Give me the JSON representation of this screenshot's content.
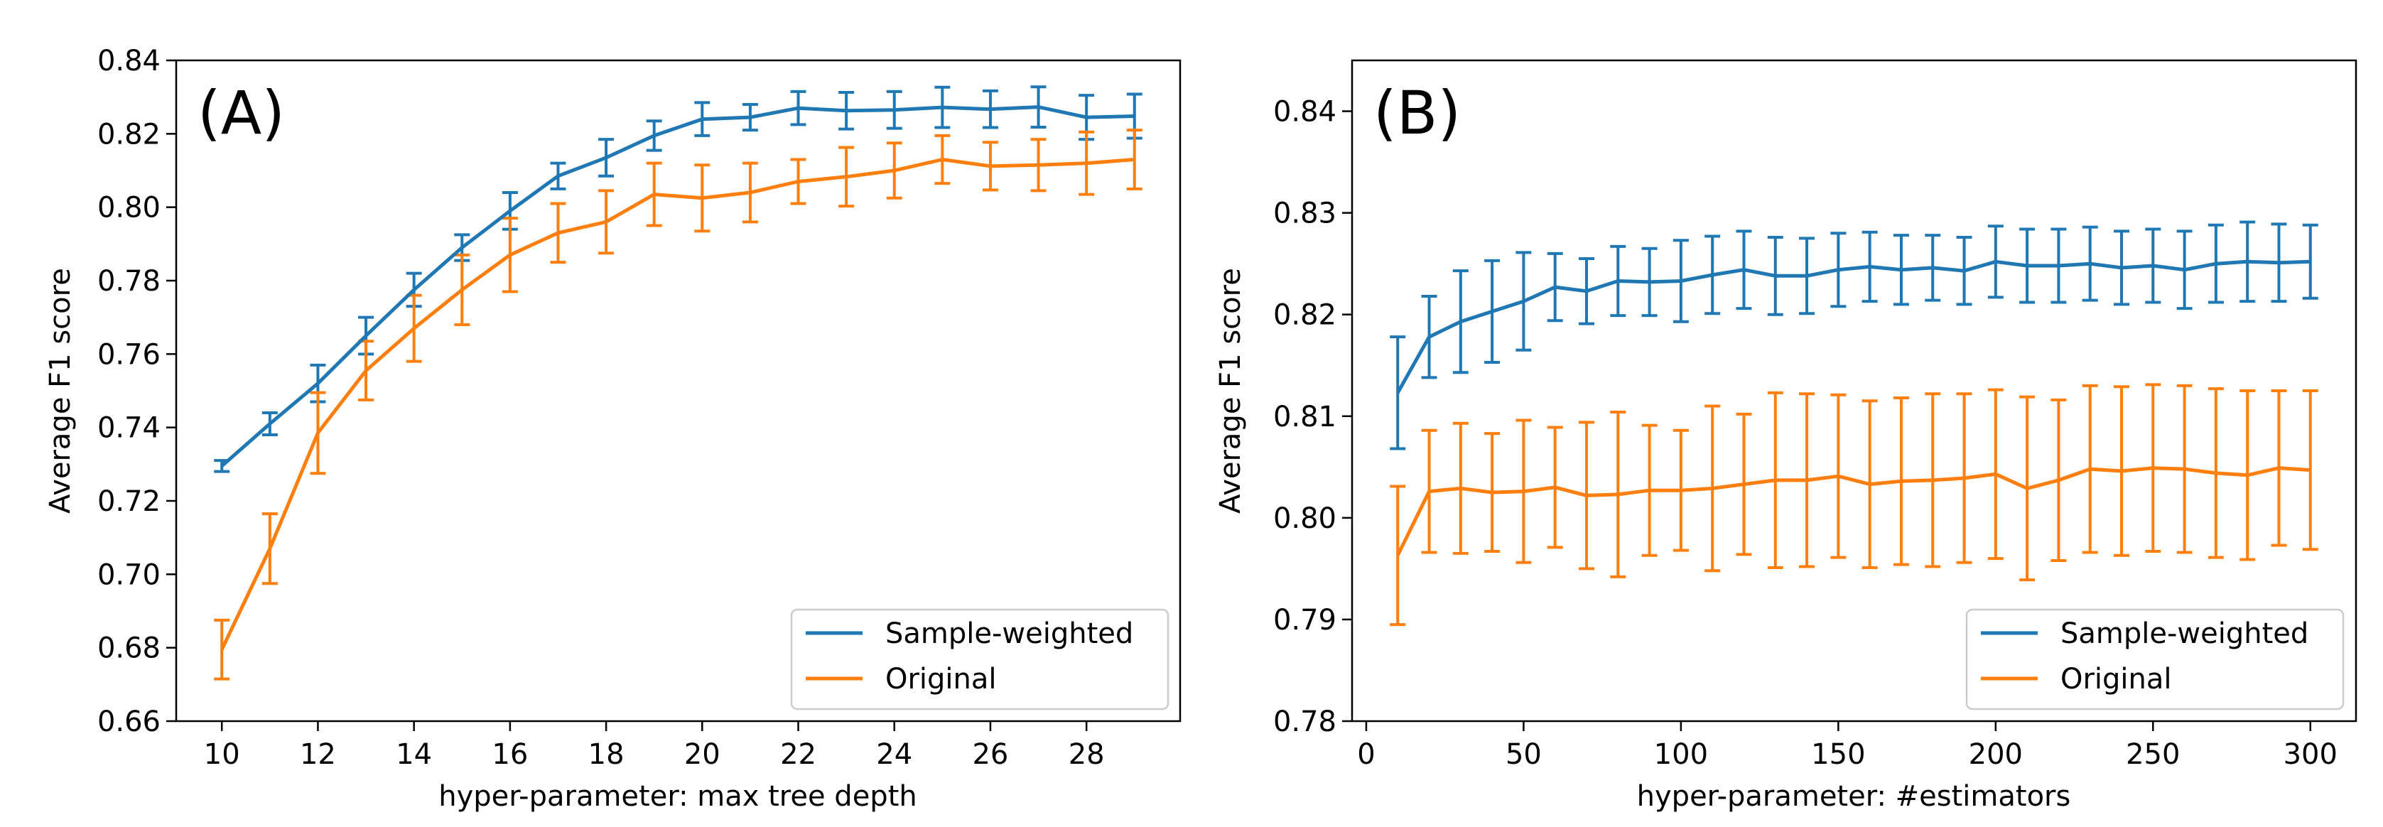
{
  "figure": {
    "background": "#ffffff"
  },
  "chart_data": [
    {
      "type": "line",
      "panel_label": "(A)",
      "xlabel": "hyper-parameter: max tree depth",
      "ylabel": "Average F1 score",
      "xlim": [
        9.05,
        29.95
      ],
      "ylim": [
        0.66,
        0.84
      ],
      "xticks": [
        10,
        12,
        14,
        16,
        18,
        20,
        22,
        24,
        26,
        28
      ],
      "yticks": [
        0.66,
        0.68,
        0.7,
        0.72,
        0.74,
        0.76,
        0.78,
        0.8,
        0.82,
        0.84
      ],
      "ytick_labels": [
        "0.66",
        "0.68",
        "0.70",
        "0.72",
        "0.74",
        "0.76",
        "0.78",
        "0.80",
        "0.82",
        "0.84"
      ],
      "legend_position": "lower-right",
      "x": [
        10,
        11,
        12,
        13,
        14,
        15,
        16,
        17,
        18,
        19,
        20,
        21,
        22,
        23,
        24,
        25,
        26,
        27,
        28,
        29
      ],
      "series": [
        {
          "name": "Sample-weighted",
          "color": "#1f77b4",
          "values": [
            0.7295,
            0.741,
            0.752,
            0.765,
            0.7775,
            0.789,
            0.799,
            0.8085,
            0.8135,
            0.8195,
            0.824,
            0.8245,
            0.827,
            0.8263,
            0.8265,
            0.8272,
            0.8267,
            0.8273,
            0.8245,
            0.8248
          ],
          "errors": [
            0.0015,
            0.003,
            0.005,
            0.005,
            0.0045,
            0.0035,
            0.005,
            0.0035,
            0.005,
            0.004,
            0.0045,
            0.0035,
            0.0045,
            0.005,
            0.005,
            0.0055,
            0.005,
            0.0055,
            0.006,
            0.006
          ]
        },
        {
          "name": "Original",
          "color": "#ff7f0e",
          "values": [
            0.6795,
            0.707,
            0.7385,
            0.7555,
            0.767,
            0.7775,
            0.787,
            0.793,
            0.796,
            0.8035,
            0.8025,
            0.804,
            0.807,
            0.8083,
            0.81,
            0.813,
            0.8112,
            0.8115,
            0.812,
            0.813
          ],
          "errors": [
            0.008,
            0.0095,
            0.011,
            0.008,
            0.009,
            0.0095,
            0.01,
            0.008,
            0.0085,
            0.0085,
            0.009,
            0.008,
            0.006,
            0.008,
            0.0075,
            0.0065,
            0.0065,
            0.007,
            0.0085,
            0.008
          ]
        }
      ]
    },
    {
      "type": "line",
      "panel_label": "(B)",
      "xlabel": "hyper-parameter: #estimators",
      "ylabel": "Average F1 score",
      "xlim": [
        -4.5,
        314.5
      ],
      "ylim": [
        0.78,
        0.845
      ],
      "xticks": [
        0,
        50,
        100,
        150,
        200,
        250,
        300
      ],
      "yticks": [
        0.78,
        0.79,
        0.8,
        0.81,
        0.82,
        0.83,
        0.84
      ],
      "ytick_labels": [
        "0.78",
        "0.79",
        "0.80",
        "0.81",
        "0.82",
        "0.83",
        "0.84"
      ],
      "legend_position": "lower-right",
      "x": [
        10,
        20,
        30,
        40,
        50,
        60,
        70,
        80,
        90,
        100,
        110,
        120,
        130,
        140,
        150,
        160,
        170,
        180,
        190,
        200,
        210,
        220,
        230,
        240,
        250,
        260,
        270,
        280,
        290,
        300
      ],
      "series": [
        {
          "name": "Sample-weighted",
          "color": "#1f77b4",
          "values": [
            0.8123,
            0.8178,
            0.8193,
            0.8203,
            0.8213,
            0.8227,
            0.8223,
            0.8233,
            0.8232,
            0.8233,
            0.8239,
            0.8244,
            0.8238,
            0.8238,
            0.8244,
            0.8247,
            0.8244,
            0.8246,
            0.8243,
            0.8252,
            0.8248,
            0.8248,
            0.825,
            0.8246,
            0.8248,
            0.8244,
            0.825,
            0.8252,
            0.8251,
            0.8252
          ],
          "errors": [
            0.0055,
            0.004,
            0.005,
            0.005,
            0.0048,
            0.0033,
            0.0032,
            0.0034,
            0.0033,
            0.004,
            0.0038,
            0.0038,
            0.0038,
            0.0037,
            0.0036,
            0.0034,
            0.0034,
            0.0032,
            0.0033,
            0.0035,
            0.0036,
            0.0036,
            0.0036,
            0.0036,
            0.0036,
            0.0038,
            0.0038,
            0.0039,
            0.0038,
            0.0036
          ]
        },
        {
          "name": "Original",
          "color": "#ff7f0e",
          "values": [
            0.7963,
            0.8026,
            0.8029,
            0.8025,
            0.8026,
            0.803,
            0.8022,
            0.8023,
            0.8027,
            0.8027,
            0.8029,
            0.8033,
            0.8037,
            0.8037,
            0.8041,
            0.8033,
            0.8036,
            0.8037,
            0.8039,
            0.8043,
            0.8029,
            0.8037,
            0.8048,
            0.8046,
            0.8049,
            0.8048,
            0.8044,
            0.8042,
            0.8049,
            0.8047
          ],
          "errors": [
            0.0068,
            0.006,
            0.0064,
            0.0058,
            0.007,
            0.0059,
            0.0072,
            0.0081,
            0.0064,
            0.0059,
            0.0081,
            0.0069,
            0.0086,
            0.0085,
            0.008,
            0.0082,
            0.0082,
            0.0085,
            0.0083,
            0.0083,
            0.009,
            0.0079,
            0.0082,
            0.0083,
            0.0082,
            0.0082,
            0.0083,
            0.0083,
            0.0076,
            0.0078
          ]
        }
      ]
    }
  ]
}
